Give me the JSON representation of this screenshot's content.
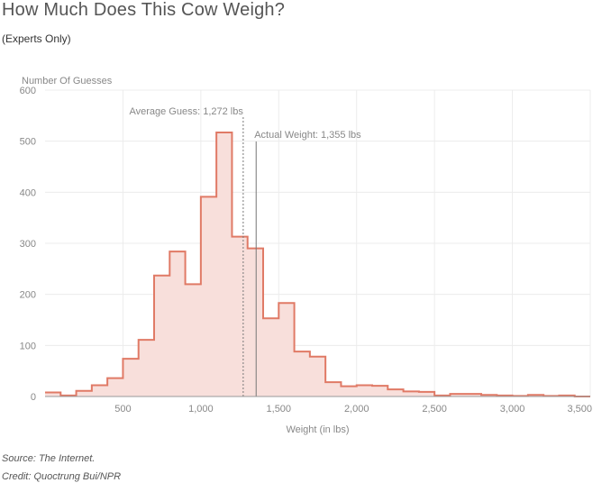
{
  "header": {
    "title": "How Much Does This Cow Weigh?",
    "subtitle": "(Experts Only)"
  },
  "footer": {
    "source": "Source: The Internet.",
    "credit": "Credit: Quoctrung Bui/NPR"
  },
  "colors": {
    "line": "#e07a66",
    "fill": "#f8dfdb",
    "grid": "#ececec"
  },
  "chart_data": {
    "type": "area",
    "title": "How Much Does This Cow Weigh?",
    "subtitle": "(Experts Only)",
    "xlabel": "Weight (in lbs)",
    "ylabel": "Number Of Guesses",
    "xlim": [
      0,
      3500
    ],
    "ylim": [
      0,
      600
    ],
    "grid": true,
    "x_ticks": [
      500,
      1000,
      1500,
      2000,
      2500,
      3000,
      3500
    ],
    "x_tick_labels": [
      "500",
      "1,000",
      "1,500",
      "2,000",
      "2,500",
      "3,000",
      "3,500"
    ],
    "y_ticks": [
      0,
      100,
      200,
      300,
      400,
      500,
      600
    ],
    "y_tick_labels": [
      "0",
      "100",
      "200",
      "300",
      "400",
      "500",
      "600"
    ],
    "bin_width": 100,
    "bin_starts": [
      0,
      100,
      200,
      300,
      400,
      500,
      600,
      700,
      800,
      900,
      1000,
      1100,
      1200,
      1300,
      1400,
      1500,
      1600,
      1700,
      1800,
      1900,
      2000,
      2100,
      2200,
      2300,
      2400,
      2500,
      2600,
      2700,
      2800,
      2900,
      3000,
      3100,
      3200,
      3300,
      3400
    ],
    "values": [
      8,
      2,
      11,
      22,
      36,
      74,
      111,
      237,
      284,
      220,
      391,
      517,
      313,
      290,
      153,
      183,
      88,
      78,
      28,
      20,
      22,
      21,
      14,
      10,
      9,
      2,
      5,
      5,
      3,
      2,
      1,
      3,
      1,
      2,
      0
    ],
    "annotations": [
      {
        "label": "Average Guess: 1,272 lbs",
        "x": 1272,
        "style": "dotted"
      },
      {
        "label": "Actual Weight: 1,355 lbs",
        "x": 1355,
        "style": "solid"
      }
    ]
  }
}
